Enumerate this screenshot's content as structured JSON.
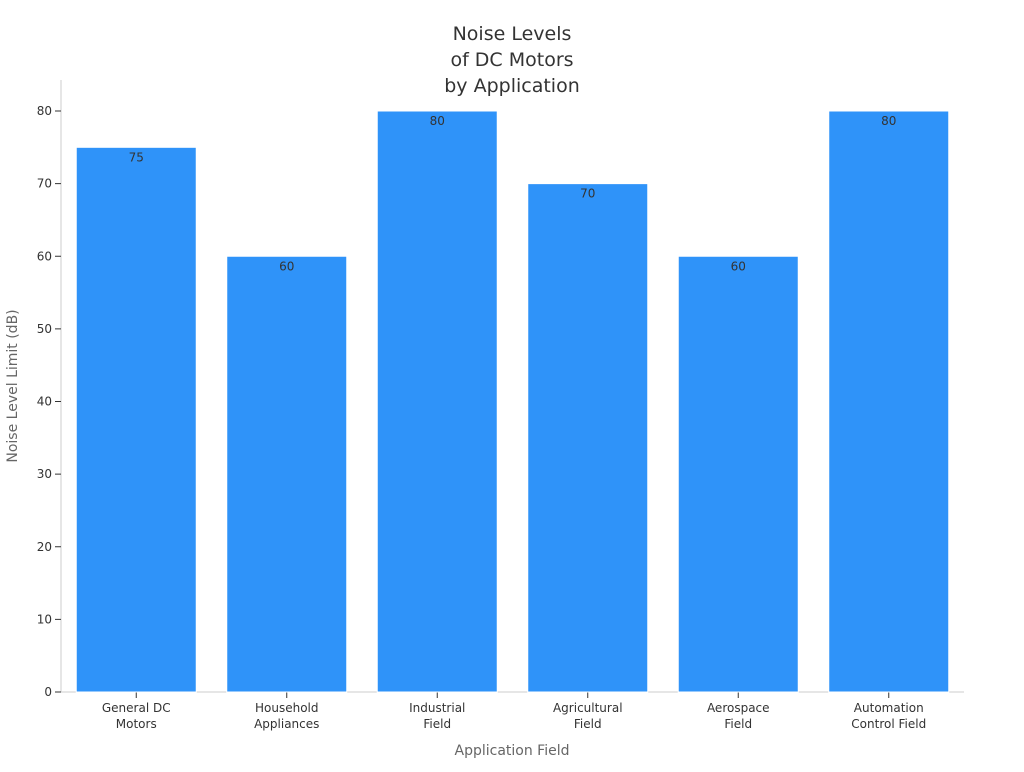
{
  "chart_data": {
    "type": "bar",
    "title_lines": [
      "Noise Levels",
      "of DC Motors",
      "by Application"
    ],
    "categories": [
      [
        "General DC",
        "Motors"
      ],
      [
        "Household",
        "Appliances"
      ],
      [
        "Industrial",
        "Field"
      ],
      [
        "Agricultural",
        "Field"
      ],
      [
        "Aerospace",
        "Field"
      ],
      [
        "Automation",
        "Control Field"
      ]
    ],
    "values": [
      75,
      60,
      80,
      70,
      60,
      80
    ],
    "xlabel": "Application Field",
    "ylabel": "Noise Level Limit (dB)",
    "ylim": [
      0,
      80
    ],
    "yticks": [
      0,
      10,
      20,
      30,
      40,
      50,
      60,
      70,
      80
    ],
    "bar_color": "#2f93f9",
    "grid": false,
    "legend": false
  }
}
